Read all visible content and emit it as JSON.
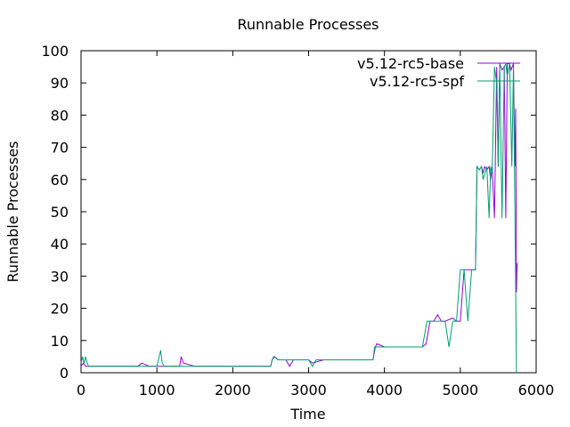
{
  "chart_data": {
    "type": "line",
    "title": "Runnable Processes",
    "xlabel": "Time",
    "ylabel": "Runnable Processes",
    "xlim": [
      0,
      6000
    ],
    "ylim": [
      0,
      100
    ],
    "xticks": [
      0,
      1000,
      2000,
      3000,
      4000,
      5000,
      6000
    ],
    "yticks": [
      0,
      10,
      20,
      30,
      40,
      50,
      60,
      70,
      80,
      90,
      100
    ],
    "grid": false,
    "legend_position": "top-right",
    "series": [
      {
        "name": "v5.12-rc5-base",
        "color": "#9400d3",
        "x": [
          0,
          30,
          60,
          100,
          300,
          600,
          750,
          800,
          900,
          1000,
          1300,
          1320,
          1350,
          1500,
          2000,
          2500,
          2520,
          2540,
          2600,
          2700,
          2750,
          2800,
          3000,
          3050,
          3200,
          3500,
          3800,
          3850,
          3880,
          3900,
          4000,
          4300,
          4500,
          4550,
          4600,
          4650,
          4700,
          4750,
          4800,
          4900,
          4950,
          5000,
          5050,
          5100,
          5150,
          5200,
          5220,
          5250,
          5280,
          5300,
          5320,
          5350,
          5380,
          5400,
          5420,
          5450,
          5480,
          5500,
          5520,
          5550,
          5580,
          5600,
          5620,
          5650,
          5670,
          5700,
          5720,
          5730,
          5740,
          5750
        ],
        "y": [
          2,
          3,
          2,
          2,
          2,
          2,
          2,
          3,
          2,
          2,
          2,
          5,
          3,
          2,
          2,
          2,
          4,
          5,
          4,
          4,
          2,
          4,
          4,
          3,
          4,
          4,
          4,
          4,
          8,
          9,
          8,
          8,
          8,
          9,
          16,
          16,
          18,
          16,
          16,
          17,
          16,
          16,
          32,
          32,
          32,
          32,
          64,
          63,
          64,
          62,
          64,
          63,
          64,
          60,
          64,
          48,
          95,
          64,
          96,
          94,
          95,
          48,
          96,
          96,
          94,
          96,
          64,
          82,
          25,
          34
        ]
      },
      {
        "name": "v5.12-rc5-spf",
        "color": "#009e73",
        "x": [
          0,
          20,
          40,
          60,
          80,
          100,
          300,
          600,
          800,
          1000,
          1050,
          1070,
          1100,
          1300,
          1500,
          2000,
          2250,
          2500,
          2520,
          2550,
          2600,
          2700,
          2800,
          3000,
          3050,
          3100,
          3300,
          3500,
          3800,
          3850,
          3870,
          3900,
          4000,
          4100,
          4300,
          4500,
          4560,
          4600,
          4700,
          4800,
          4850,
          4900,
          4950,
          5000,
          5050,
          5100,
          5150,
          5200,
          5220,
          5250,
          5280,
          5300,
          5350,
          5380,
          5400,
          5420,
          5450,
          5480,
          5500,
          5520,
          5550,
          5580,
          5600,
          5620,
          5650,
          5680,
          5700,
          5720,
          5740
        ],
        "y": [
          3,
          5,
          3,
          5,
          3,
          2,
          2,
          2,
          2,
          2,
          7,
          3,
          2,
          2,
          2,
          2,
          2,
          2,
          4,
          5,
          4,
          4,
          4,
          4,
          2,
          4,
          4,
          4,
          4,
          4,
          8,
          8,
          8,
          8,
          8,
          8,
          16,
          16,
          16,
          16,
          8,
          16,
          16,
          32,
          32,
          16,
          32,
          32,
          64,
          63,
          64,
          60,
          64,
          48,
          64,
          62,
          95,
          90,
          64,
          96,
          48,
          95,
          96,
          92,
          96,
          64,
          95,
          48,
          0
        ]
      }
    ]
  }
}
